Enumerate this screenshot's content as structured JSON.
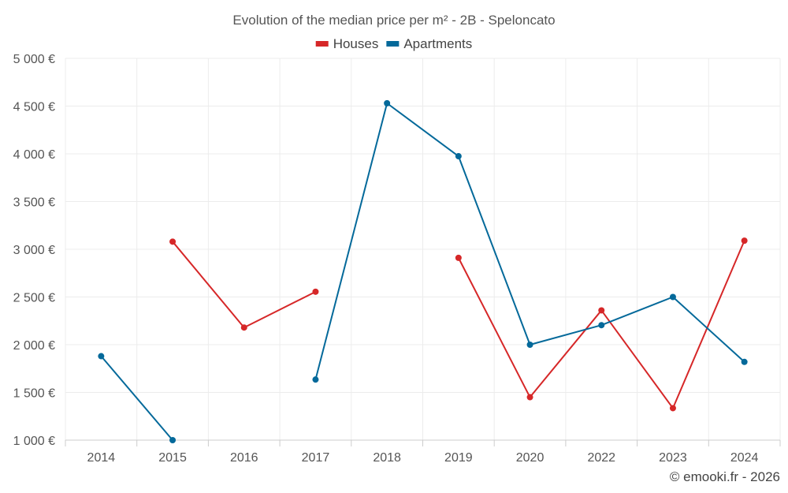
{
  "chart_data": {
    "type": "line",
    "title": "Evolution of the median price per m² - 2B - Speloncato",
    "categories": [
      "2014",
      "2015",
      "2016",
      "2017",
      "2018",
      "2019",
      "2020",
      "2022",
      "2023",
      "2024"
    ],
    "y_tick_labels": [
      "1 000 €",
      "1 500 €",
      "2 000 €",
      "2 500 €",
      "3 000 €",
      "3 500 €",
      "4 000 €",
      "4 500 €",
      "5 000 €"
    ],
    "y_ticks": [
      1000,
      1500,
      2000,
      2500,
      3000,
      3500,
      4000,
      4500,
      5000
    ],
    "ylim": [
      1000,
      5000
    ],
    "legend_position": "top-center",
    "grid": true,
    "series": [
      {
        "name": "Houses",
        "color": "#d62728",
        "values": [
          null,
          3080,
          2180,
          2555,
          null,
          2910,
          1450,
          2360,
          1335,
          3090
        ]
      },
      {
        "name": "Apartments",
        "color": "#04699a",
        "values": [
          1880,
          1000,
          null,
          1635,
          4530,
          3975,
          2000,
          2205,
          2500,
          1820
        ]
      }
    ]
  },
  "credit": "© emooki.fr - 2026"
}
